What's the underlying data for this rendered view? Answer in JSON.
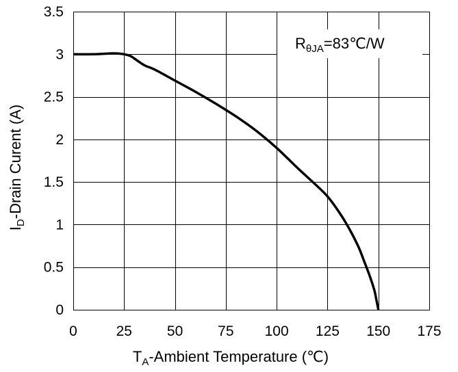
{
  "chart_data": {
    "type": "line",
    "title": "",
    "xlabel": {
      "main": "T",
      "sub": "A",
      "rest": "-Ambient  Temperature (℃)"
    },
    "ylabel": {
      "main": "I",
      "sub": "D",
      "rest": "-Drain Curent (A)"
    },
    "xlim": [
      0,
      175
    ],
    "ylim": [
      0,
      3.5
    ],
    "xticks": [
      0,
      25,
      50,
      75,
      100,
      125,
      150,
      175
    ],
    "yticks": [
      0,
      0.5,
      1,
      1.5,
      2,
      2.5,
      3,
      3.5
    ],
    "xtick_labels": [
      "0",
      "25",
      "50",
      "75",
      "100",
      "125",
      "150",
      "175"
    ],
    "ytick_labels": [
      "0",
      "0.5",
      "1",
      "1.5",
      "2",
      "2.5",
      "3",
      "3.5"
    ],
    "grid": true,
    "annotation": {
      "main": "R",
      "sub": "θJA",
      "rest": "=83℃/W"
    },
    "series": [
      {
        "color": "#000000",
        "x": [
          0,
          10,
          20,
          25,
          28,
          30,
          35,
          40,
          50,
          60,
          70,
          80,
          90,
          100,
          110,
          120,
          125,
          130,
          135,
          140,
          143,
          146,
          148,
          149,
          149.5,
          150
        ],
        "y": [
          3.0,
          3.0,
          3.01,
          3.0,
          2.98,
          2.95,
          2.87,
          2.82,
          2.69,
          2.56,
          2.42,
          2.27,
          2.1,
          1.9,
          1.67,
          1.45,
          1.33,
          1.17,
          0.98,
          0.75,
          0.57,
          0.38,
          0.23,
          0.12,
          0.06,
          0.0
        ]
      }
    ],
    "colors": {
      "grid": "#000000",
      "line": "#000000",
      "background": "#ffffff"
    }
  }
}
